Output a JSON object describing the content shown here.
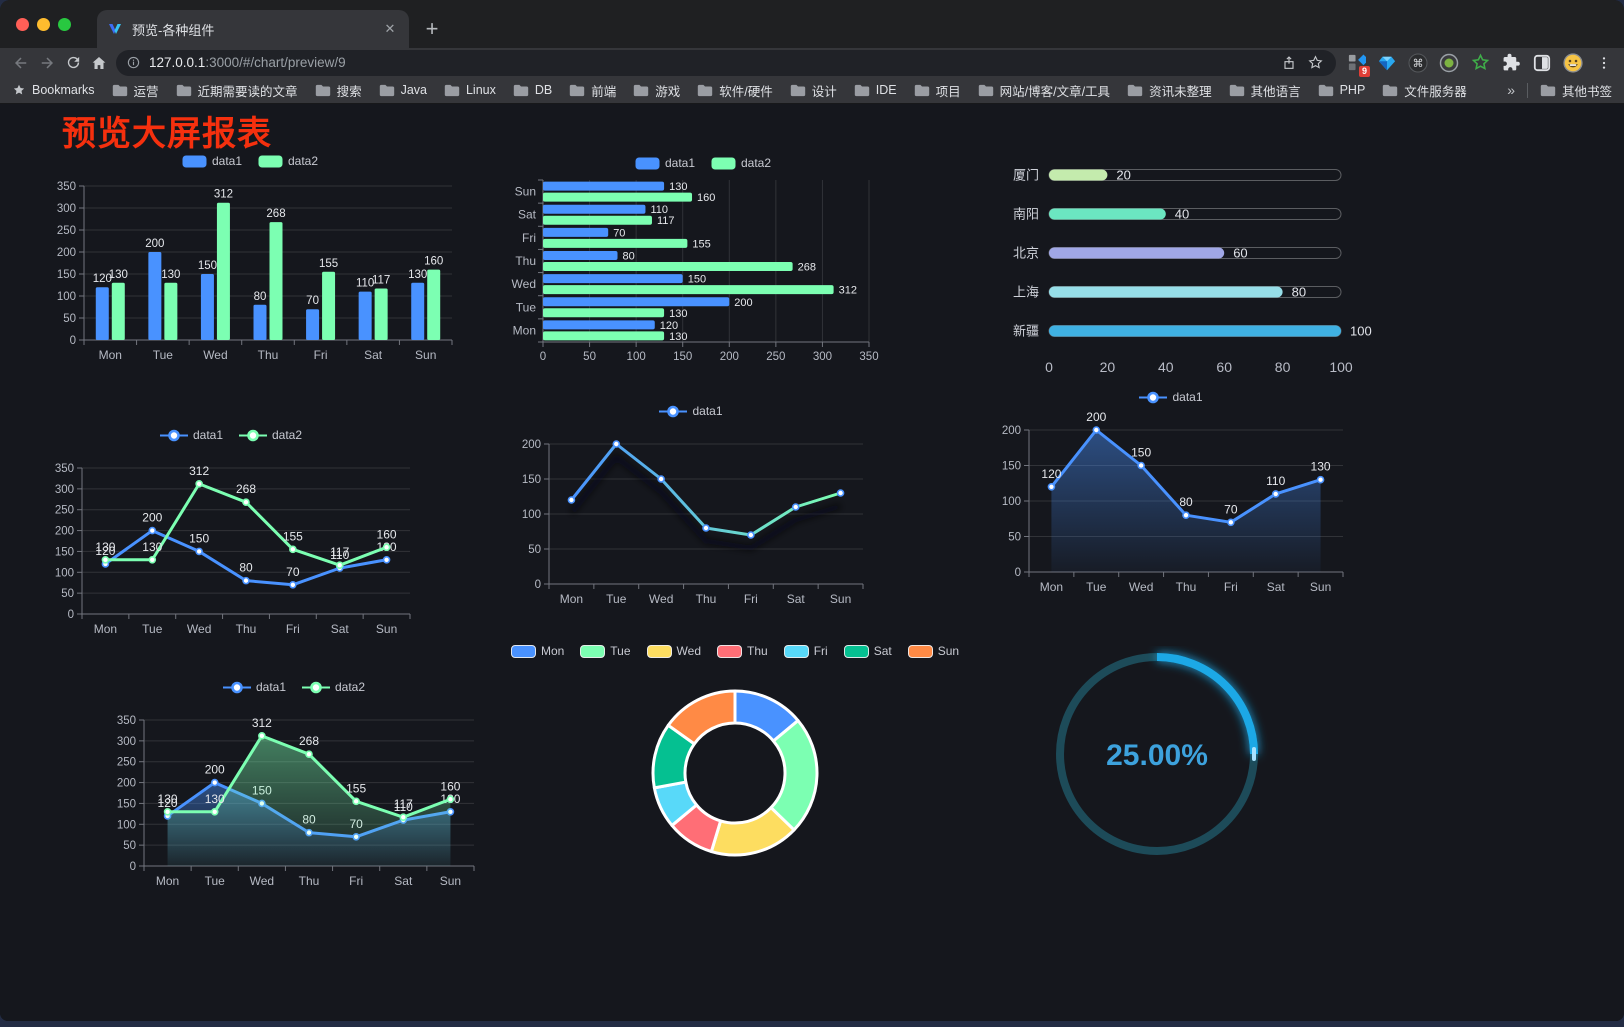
{
  "page": {
    "title": "预览大屏报表"
  },
  "browser": {
    "tab_title": "预览-各种组件",
    "tab_close": "✕",
    "new_tab": "+",
    "url_host": "127.0.0.1",
    "url_rest": ":3000/#/chart/preview/9",
    "extension_badge": "9",
    "bookmarks_root": "Bookmarks",
    "bookmarks": [
      "运营",
      "近期需要读的文章",
      "搜索",
      "Java",
      "Linux",
      "DB",
      "前端",
      "游戏",
      "软件/硬件",
      "设计",
      "IDE",
      "项目",
      "网站/博客/文章/工具",
      "资讯未整理",
      "其他语言",
      "PHP",
      "文件服务器"
    ],
    "bookmarks_overflow": "»",
    "other_bookmarks": "其他书签"
  },
  "chart_data": [
    {
      "id": "bar-grouped",
      "type": "bar",
      "legend": [
        "data1",
        "data2"
      ],
      "categories": [
        "Mon",
        "Tue",
        "Wed",
        "Thu",
        "Fri",
        "Sat",
        "Sun"
      ],
      "series": [
        {
          "name": "data1",
          "color": "#4992ff",
          "values": [
            120,
            200,
            150,
            80,
            70,
            110,
            130
          ]
        },
        {
          "name": "data2",
          "color": "#7cffb2",
          "values": [
            130,
            130,
            312,
            268,
            155,
            117,
            160
          ]
        }
      ],
      "ylim": [
        0,
        350
      ],
      "ytick": 50,
      "grid": true
    },
    {
      "id": "bar-horizontal",
      "type": "hbar",
      "legend": [
        "data1",
        "data2"
      ],
      "categories_top_to_bottom": [
        "Sun",
        "Sat",
        "Fri",
        "Thu",
        "Wed",
        "Tue",
        "Mon"
      ],
      "series": [
        {
          "name": "data1",
          "color": "#4992ff",
          "values": [
            130,
            110,
            70,
            80,
            150,
            200,
            120
          ]
        },
        {
          "name": "data2",
          "color": "#7cffb2",
          "values": [
            160,
            117,
            155,
            268,
            312,
            130,
            130
          ]
        }
      ],
      "xlim": [
        0,
        350
      ],
      "xtick": 50
    },
    {
      "id": "progress-bars",
      "type": "progress",
      "max": 100,
      "ticks": [
        0,
        20,
        40,
        60,
        80,
        100
      ],
      "items": [
        {
          "label": "厦门",
          "value": 20,
          "color": "#c4ebad"
        },
        {
          "label": "南阳",
          "value": 40,
          "color": "#6be6c1"
        },
        {
          "label": "北京",
          "value": 60,
          "color": "#a0a7e6"
        },
        {
          "label": "上海",
          "value": 80,
          "color": "#96dee8"
        },
        {
          "label": "新疆",
          "value": 100,
          "color": "#3fb1e3"
        }
      ]
    },
    {
      "id": "line-dual",
      "type": "line",
      "legend": [
        "data1",
        "data2"
      ],
      "show_labels": true,
      "categories": [
        "Mon",
        "Tue",
        "Wed",
        "Thu",
        "Fri",
        "Sat",
        "Sun"
      ],
      "series": [
        {
          "name": "data1",
          "color": "#4992ff",
          "values": [
            120,
            200,
            150,
            80,
            70,
            110,
            130
          ]
        },
        {
          "name": "data2",
          "color": "#7cffb2",
          "values": [
            130,
            130,
            312,
            268,
            155,
            117,
            160
          ]
        }
      ],
      "ylim": [
        0,
        350
      ],
      "ytick": 50
    },
    {
      "id": "line-gradient",
      "type": "line",
      "legend": [
        "data1"
      ],
      "show_labels": false,
      "shadow": true,
      "gradient": [
        "#4992ff",
        "#7cffb2"
      ],
      "categories": [
        "Mon",
        "Tue",
        "Wed",
        "Thu",
        "Fri",
        "Sat",
        "Sun"
      ],
      "series": [
        {
          "name": "data1",
          "color": "#4992ff",
          "values": [
            120,
            200,
            150,
            80,
            70,
            110,
            130
          ]
        }
      ],
      "ylim": [
        0,
        200
      ],
      "ytick": 50
    },
    {
      "id": "line-area",
      "type": "line",
      "legend": [
        "data1"
      ],
      "show_labels": true,
      "area": true,
      "categories": [
        "Mon",
        "Tue",
        "Wed",
        "Thu",
        "Fri",
        "Sat",
        "Sun"
      ],
      "series": [
        {
          "name": "data1",
          "color": "#4992ff",
          "values": [
            120,
            200,
            150,
            80,
            70,
            110,
            130
          ]
        }
      ],
      "ylim": [
        0,
        200
      ],
      "ytick": 50
    },
    {
      "id": "line-area-dual",
      "type": "line",
      "legend": [
        "data1",
        "data2"
      ],
      "show_labels": true,
      "area": true,
      "categories": [
        "Mon",
        "Tue",
        "Wed",
        "Thu",
        "Fri",
        "Sat",
        "Sun"
      ],
      "series": [
        {
          "name": "data1",
          "color": "#4992ff",
          "values": [
            120,
            200,
            150,
            80,
            70,
            110,
            130
          ]
        },
        {
          "name": "data2",
          "color": "#7cffb2",
          "values": [
            130,
            130,
            312,
            268,
            155,
            117,
            160
          ]
        }
      ],
      "ylim": [
        0,
        350
      ],
      "ytick": 50
    },
    {
      "id": "donut",
      "type": "pie",
      "categories": [
        "Mon",
        "Tue",
        "Wed",
        "Thu",
        "Fri",
        "Sat",
        "Sun"
      ],
      "values": [
        120,
        200,
        150,
        80,
        70,
        110,
        130
      ],
      "colors": [
        "#4992ff",
        "#7cffb2",
        "#fddd60",
        "#ff6e76",
        "#58d9f9",
        "#05c091",
        "#ff8a45"
      ],
      "inner_radius_ratio": 0.61
    },
    {
      "id": "gauge",
      "type": "gauge",
      "value": 25,
      "label": "25.00%",
      "color": "#1ca8e6",
      "track_color": "#1d4b59",
      "text_color": "#3da2dd"
    }
  ]
}
